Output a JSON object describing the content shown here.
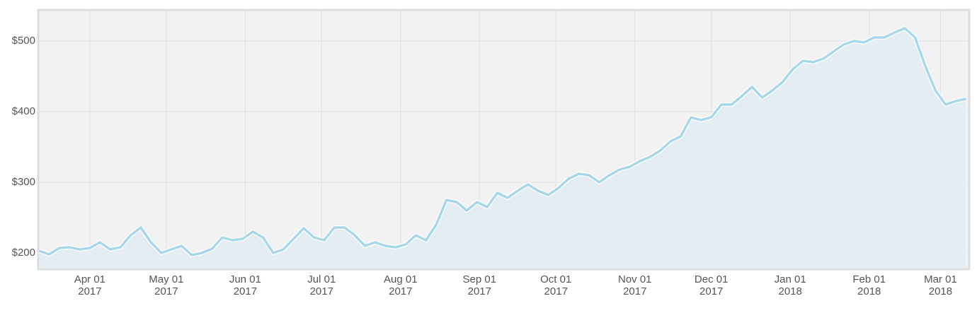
{
  "chart_data": {
    "type": "area",
    "x": [
      "2017-03-12",
      "2017-03-16",
      "2017-03-20",
      "2017-03-24",
      "2017-03-28",
      "2017-04-01",
      "2017-04-05",
      "2017-04-09",
      "2017-04-13",
      "2017-04-17",
      "2017-04-21",
      "2017-04-25",
      "2017-04-29",
      "2017-05-03",
      "2017-05-07",
      "2017-05-11",
      "2017-05-15",
      "2017-05-19",
      "2017-05-23",
      "2017-05-27",
      "2017-05-31",
      "2017-06-04",
      "2017-06-08",
      "2017-06-12",
      "2017-06-16",
      "2017-06-20",
      "2017-06-24",
      "2017-06-28",
      "2017-07-02",
      "2017-07-06",
      "2017-07-10",
      "2017-07-14",
      "2017-07-18",
      "2017-07-22",
      "2017-07-26",
      "2017-07-30",
      "2017-08-03",
      "2017-08-07",
      "2017-08-11",
      "2017-08-15",
      "2017-08-19",
      "2017-08-23",
      "2017-08-27",
      "2017-08-31",
      "2017-09-04",
      "2017-09-08",
      "2017-09-12",
      "2017-09-16",
      "2017-09-20",
      "2017-09-24",
      "2017-09-28",
      "2017-10-02",
      "2017-10-06",
      "2017-10-10",
      "2017-10-14",
      "2017-10-18",
      "2017-10-22",
      "2017-10-26",
      "2017-10-30",
      "2017-11-03",
      "2017-11-07",
      "2017-11-11",
      "2017-11-15",
      "2017-11-19",
      "2017-11-23",
      "2017-11-27",
      "2017-12-01",
      "2017-12-05",
      "2017-12-09",
      "2017-12-13",
      "2017-12-17",
      "2017-12-21",
      "2017-12-25",
      "2017-12-29",
      "2018-01-02",
      "2018-01-06",
      "2018-01-10",
      "2018-01-14",
      "2018-01-18",
      "2018-01-22",
      "2018-01-26",
      "2018-01-30",
      "2018-02-03",
      "2018-02-07",
      "2018-02-11",
      "2018-02-15",
      "2018-02-19",
      "2018-02-23",
      "2018-02-27",
      "2018-03-03",
      "2018-03-07",
      "2018-03-11"
    ],
    "values": [
      203,
      198,
      207,
      208,
      205,
      207,
      215,
      205,
      208,
      225,
      236,
      215,
      200,
      205,
      210,
      197,
      200,
      206,
      222,
      218,
      220,
      230,
      222,
      200,
      205,
      220,
      235,
      222,
      218,
      236,
      236,
      225,
      210,
      215,
      210,
      208,
      212,
      225,
      218,
      240,
      275,
      272,
      260,
      272,
      265,
      285,
      278,
      288,
      297,
      288,
      282,
      292,
      305,
      312,
      310,
      300,
      310,
      318,
      322,
      330,
      336,
      345,
      358,
      365,
      392,
      388,
      392,
      410,
      410,
      422,
      435,
      420,
      430,
      442,
      460,
      472,
      470,
      475,
      485,
      495,
      500,
      498,
      505,
      505,
      512,
      518,
      505,
      465,
      430,
      410,
      415,
      418
    ],
    "color": "#a9d7ea",
    "xlim": [
      "2017-03-12",
      "2018-03-12"
    ],
    "xticks": [
      {
        "value": "2017-04-01",
        "label": "Apr 01",
        "year": "2017"
      },
      {
        "value": "2017-05-01",
        "label": "May 01",
        "year": "2017"
      },
      {
        "value": "2017-06-01",
        "label": "Jun 01",
        "year": "2017"
      },
      {
        "value": "2017-07-01",
        "label": "Jul 01",
        "year": "2017"
      },
      {
        "value": "2017-08-01",
        "label": "Aug 01",
        "year": "2017"
      },
      {
        "value": "2017-09-01",
        "label": "Sep 01",
        "year": "2017"
      },
      {
        "value": "2017-10-01",
        "label": "Oct 01",
        "year": "2017"
      },
      {
        "value": "2017-11-01",
        "label": "Nov 01",
        "year": "2017"
      },
      {
        "value": "2017-12-01",
        "label": "Dec 01",
        "year": "2017"
      },
      {
        "value": "2018-01-01",
        "label": "Jan 01",
        "year": "2018"
      },
      {
        "value": "2018-02-01",
        "label": "Feb 01",
        "year": "2018"
      },
      {
        "value": "2018-03-01",
        "label": "Mar 01",
        "year": "2018"
      }
    ],
    "ylim": [
      178,
      543
    ],
    "yticks": [
      {
        "value": 200,
        "label": "$200"
      },
      {
        "value": 300,
        "label": "$300"
      },
      {
        "value": 400,
        "label": "$400"
      },
      {
        "value": 500,
        "label": "$500"
      }
    ],
    "grid": true
  }
}
